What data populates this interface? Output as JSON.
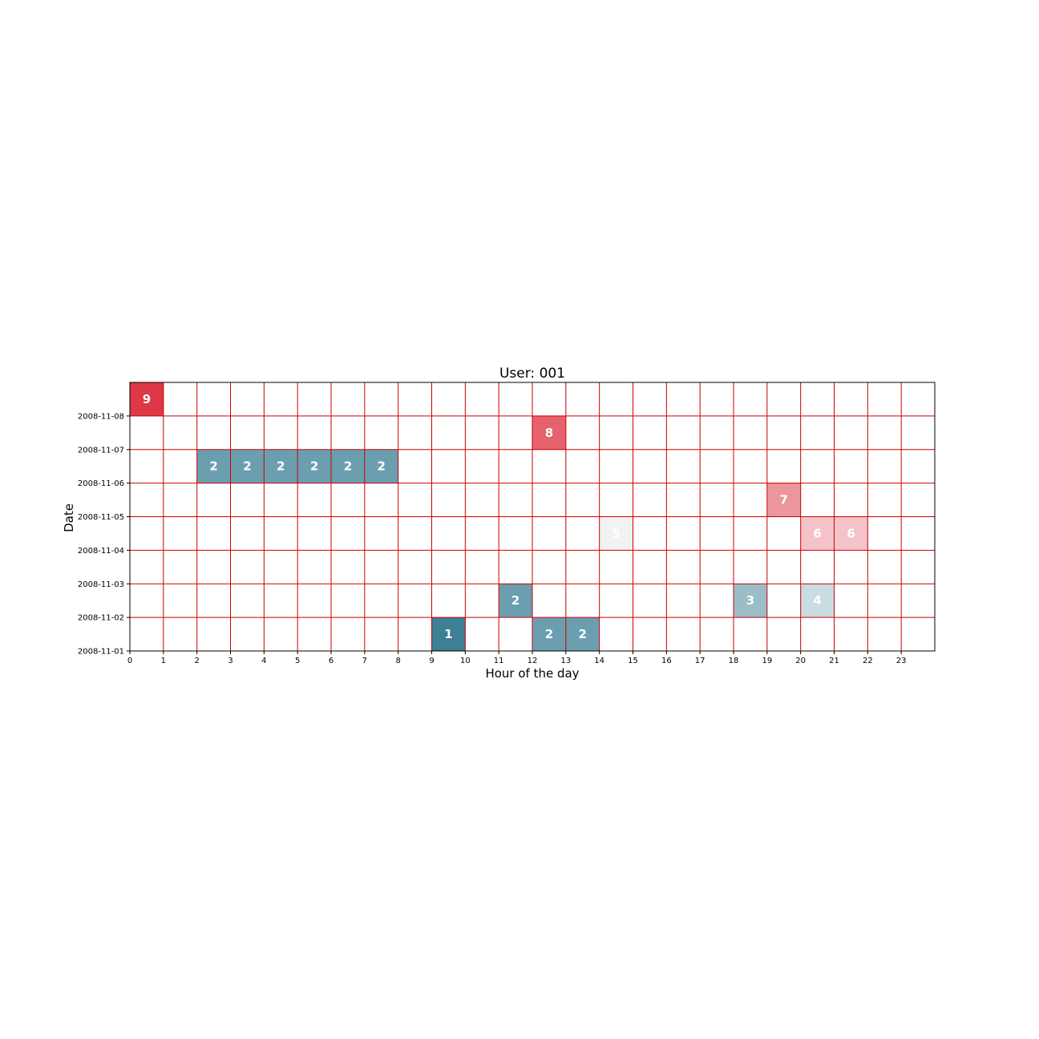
{
  "chart_data": {
    "type": "heatmap",
    "title": "User: 001",
    "xlabel": "Hour of the day",
    "ylabel": "Date",
    "x_ticks": [
      "0",
      "1",
      "2",
      "3",
      "4",
      "5",
      "6",
      "7",
      "8",
      "9",
      "10",
      "11",
      "12",
      "13",
      "14",
      "15",
      "16",
      "17",
      "18",
      "19",
      "20",
      "21",
      "22",
      "23"
    ],
    "x_range": [
      0,
      24
    ],
    "y_ticks": [
      "2008-11-01",
      "2008-11-02",
      "2008-11-03",
      "2008-11-04",
      "2008-11-05",
      "2008-11-06",
      "2008-11-07",
      "2008-11-08"
    ],
    "y_range": [
      0,
      8
    ],
    "grid": true,
    "grid_color": "#cc0000",
    "cells": [
      {
        "x": 0,
        "y": 7,
        "value": 9,
        "color": "#dd3848"
      },
      {
        "x": 12,
        "y": 6,
        "value": 8,
        "color": "#e6626e"
      },
      {
        "x": 2,
        "y": 5,
        "value": 2,
        "color": "#6b9fb0"
      },
      {
        "x": 3,
        "y": 5,
        "value": 2,
        "color": "#6b9fb0"
      },
      {
        "x": 4,
        "y": 5,
        "value": 2,
        "color": "#6b9fb0"
      },
      {
        "x": 5,
        "y": 5,
        "value": 2,
        "color": "#6b9fb0"
      },
      {
        "x": 6,
        "y": 5,
        "value": 2,
        "color": "#6b9fb0"
      },
      {
        "x": 7,
        "y": 5,
        "value": 2,
        "color": "#6b9fb0"
      },
      {
        "x": 19,
        "y": 4,
        "value": 7,
        "color": "#ed959c"
      },
      {
        "x": 14,
        "y": 3,
        "value": 5,
        "color": "#f2f2f3"
      },
      {
        "x": 20,
        "y": 3,
        "value": 6,
        "color": "#f4c3c8"
      },
      {
        "x": 21,
        "y": 3,
        "value": 6,
        "color": "#f4c3c8"
      },
      {
        "x": 11,
        "y": 1,
        "value": 2,
        "color": "#6b9fb0"
      },
      {
        "x": 18,
        "y": 1,
        "value": 3,
        "color": "#9bbdc8"
      },
      {
        "x": 20,
        "y": 1,
        "value": 4,
        "color": "#c8dce2"
      },
      {
        "x": 9,
        "y": 0,
        "value": 1,
        "color": "#3d7f95"
      },
      {
        "x": 12,
        "y": 0,
        "value": 2,
        "color": "#6b9fb0"
      },
      {
        "x": 13,
        "y": 0,
        "value": 2,
        "color": "#6b9fb0"
      }
    ]
  }
}
